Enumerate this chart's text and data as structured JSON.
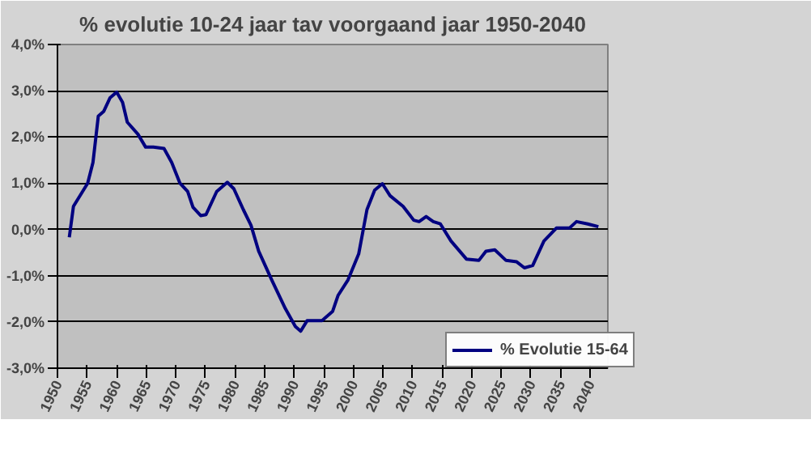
{
  "chart_data": {
    "type": "line",
    "title": "% evolutie 10-24 jaar tav voorgaand jaar 1950-2040",
    "x": [
      1952,
      1952.7,
      1955.1,
      1956,
      1956.9,
      1957.8,
      1958.9,
      1960,
      1961,
      1961.8,
      1963.6,
      1964.9,
      1966.2,
      1968,
      1969.3,
      1970.7,
      1972,
      1972.9,
      1974.2,
      1975.1,
      1976.9,
      1978.7,
      1979.8,
      1981.4,
      1982.7,
      1984,
      1986.2,
      1988.5,
      1990.2,
      1991.1,
      1992.2,
      1994.7,
      1996.5,
      1997.4,
      1999.1,
      2000.9,
      2002.3,
      2003.6,
      2004.9,
      2006.2,
      2008.4,
      2010.2,
      2011.1,
      2012.3,
      2013.5,
      2014.7,
      2016.5,
      2019.1,
      2021.2,
      2022.4,
      2023.9,
      2025.8,
      2027.6,
      2028.9,
      2030.3,
      2032.2,
      2034.3,
      2036.5,
      2037.7,
      2039.6,
      2041.4
    ],
    "series": [
      {
        "name": "% Evolutie 15-64",
        "color": "#000080",
        "values": [
          -0.17,
          0.5,
          1.0,
          1.45,
          2.45,
          2.55,
          2.85,
          2.97,
          2.75,
          2.32,
          2.06,
          1.78,
          1.78,
          1.75,
          1.45,
          1.0,
          0.82,
          0.48,
          0.3,
          0.32,
          0.82,
          1.02,
          0.88,
          0.43,
          0.09,
          -0.47,
          -1.09,
          -1.71,
          -2.1,
          -2.2,
          -1.97,
          -1.97,
          -1.77,
          -1.43,
          -1.09,
          -0.53,
          0.43,
          0.85,
          0.99,
          0.73,
          0.5,
          0.2,
          0.17,
          0.28,
          0.17,
          0.12,
          -0.25,
          -0.64,
          -0.67,
          -0.47,
          -0.44,
          -0.67,
          -0.7,
          -0.83,
          -0.78,
          -0.25,
          0.03,
          0.03,
          0.17,
          0.12,
          0.06
        ]
      }
    ],
    "xlim": [
      1950,
      2043
    ],
    "xticks": [
      1950,
      1955,
      1960,
      1965,
      1970,
      1975,
      1980,
      1985,
      1990,
      1995,
      2000,
      2005,
      2010,
      2015,
      2020,
      2025,
      2030,
      2035,
      2040
    ],
    "ylim": [
      -3,
      4
    ],
    "yticks": [
      {
        "value": -3,
        "label": "-3,0%"
      },
      {
        "value": -2,
        "label": "-2,0%"
      },
      {
        "value": -1,
        "label": "-1,0%"
      },
      {
        "value": 0,
        "label": "0,0%"
      },
      {
        "value": 1,
        "label": "1,0%"
      },
      {
        "value": 2,
        "label": "2,0%"
      },
      {
        "value": 3,
        "label": "3,0%"
      },
      {
        "value": 4,
        "label": "4,0%"
      }
    ],
    "grid": "y",
    "legend": "right",
    "marker": "none",
    "line_style": "solid"
  }
}
